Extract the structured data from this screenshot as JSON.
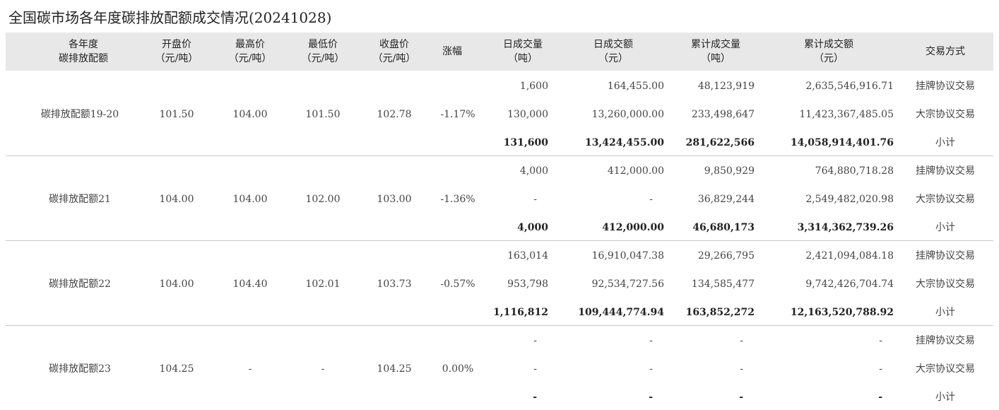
{
  "title": "全国碳市场各年度碳排放配额成交情况(20241028)",
  "header": {
    "c1": [
      "各年度",
      "碳排放配额"
    ],
    "c2": [
      "开盘价",
      "（元/吨）"
    ],
    "c3": [
      "最高价",
      "（元/吨）"
    ],
    "c4": [
      "最低价",
      "（元/吨）"
    ],
    "c5": [
      "收盘价",
      "（元/吨）"
    ],
    "c6": [
      "涨幅"
    ],
    "c7": [
      "日成交量",
      "（吨）"
    ],
    "c8": [
      "日成交额",
      "（元）"
    ],
    "c9": [
      "累计成交量",
      "（吨）"
    ],
    "c10": [
      "累计成交额",
      "（元）"
    ],
    "c11": [
      "交易方式"
    ]
  },
  "groups": [
    {
      "name": "碳排放配额19-20",
      "open": "101.50",
      "high": "104.00",
      "low": "101.50",
      "close": "102.78",
      "change": "-1.17%",
      "rows": [
        {
          "vol": "1,600",
          "amt": "164,455.00",
          "cvol": "48,123,919",
          "camt": "2,635,546,916.71",
          "method": "挂牌协议交易"
        },
        {
          "vol": "130,000",
          "amt": "13,260,000.00",
          "cvol": "233,498,647",
          "camt": "11,423,367,485.05",
          "method": "大宗协议交易"
        },
        {
          "vol": "131,600",
          "amt": "13,424,455.00",
          "cvol": "281,622,566",
          "camt": "14,058,914,401.76",
          "method": "小计"
        }
      ]
    },
    {
      "name": "碳排放配额21",
      "open": "104.00",
      "high": "104.00",
      "low": "102.00",
      "close": "103.00",
      "change": "-1.36%",
      "rows": [
        {
          "vol": "4,000",
          "amt": "412,000.00",
          "cvol": "9,850,929",
          "camt": "764,880,718.28",
          "method": "挂牌协议交易"
        },
        {
          "vol": "-",
          "amt": "-",
          "cvol": "36,829,244",
          "camt": "2,549,482,020.98",
          "method": "大宗协议交易"
        },
        {
          "vol": "4,000",
          "amt": "412,000.00",
          "cvol": "46,680,173",
          "camt": "3,314,362,739.26",
          "method": "小计"
        }
      ]
    },
    {
      "name": "碳排放配额22",
      "open": "104.00",
      "high": "104.40",
      "low": "102.01",
      "close": "103.73",
      "change": "-0.57%",
      "rows": [
        {
          "vol": "163,014",
          "amt": "16,910,047.38",
          "cvol": "29,266,795",
          "camt": "2,421,094,084.18",
          "method": "挂牌协议交易"
        },
        {
          "vol": "953,798",
          "amt": "92,534,727.56",
          "cvol": "134,585,477",
          "camt": "9,742,426,704.74",
          "method": "大宗协议交易"
        },
        {
          "vol": "1,116,812",
          "amt": "109,444,774.94",
          "cvol": "163,852,272",
          "camt": "12,163,520,788.92",
          "method": "小计"
        }
      ]
    },
    {
      "name": "碳排放配额23",
      "open": "104.25",
      "high": "-",
      "low": "-",
      "close": "104.25",
      "change": "0.00%",
      "rows": [
        {
          "vol": "-",
          "amt": "-",
          "cvol": "-",
          "camt": "-",
          "method": "挂牌协议交易"
        },
        {
          "vol": "-",
          "amt": "-",
          "cvol": "-",
          "camt": "-",
          "method": "大宗协议交易"
        },
        {
          "vol": "-",
          "amt": "-",
          "cvol": "-",
          "camt": "-",
          "method": "小计"
        }
      ]
    }
  ]
}
